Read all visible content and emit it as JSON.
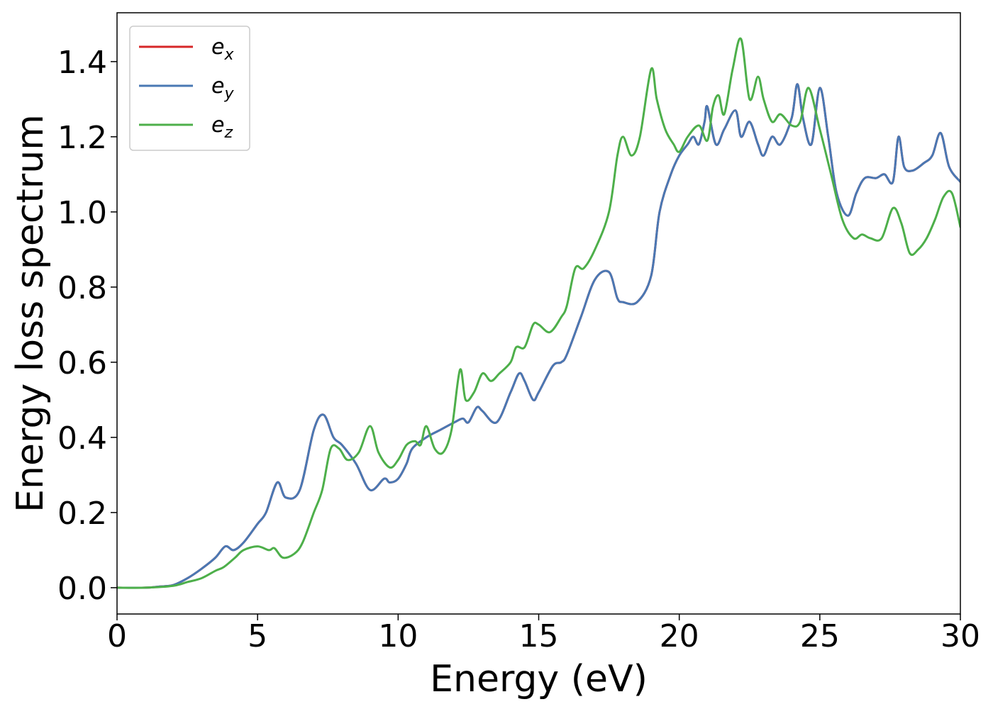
{
  "chart_data": {
    "type": "line",
    "xlabel": "Energy (eV)",
    "ylabel": "Energy loss spectrum",
    "xlim": [
      0,
      30
    ],
    "ylim": [
      -0.07,
      1.53
    ],
    "xticks": [
      0,
      5,
      10,
      15,
      20,
      25,
      30
    ],
    "xtick_labels": [
      "0",
      "5",
      "10",
      "15",
      "20",
      "25",
      "30"
    ],
    "yticks": [
      0.0,
      0.2,
      0.4,
      0.6,
      0.8,
      1.0,
      1.2,
      1.4
    ],
    "ytick_labels": [
      "0.0",
      "0.2",
      "0.4",
      "0.6",
      "0.8",
      "1.0",
      "1.2",
      "1.4"
    ],
    "grid": false,
    "legend_position": "top-left",
    "series": [
      {
        "name": "e_x",
        "label_base": "e",
        "label_sub": "x",
        "color": "#d62728",
        "x": [
          0,
          1,
          1.5,
          2,
          2.5,
          3,
          3.5,
          3.85,
          4.15,
          4.5,
          5,
          5.3,
          5.7,
          6,
          6.5,
          7,
          7.35,
          7.7,
          8,
          8.5,
          9,
          9.5,
          9.7,
          10,
          10.3,
          10.5,
          11,
          11.5,
          12,
          12.3,
          12.5,
          12.8,
          13,
          13.5,
          14,
          14.3,
          14.5,
          14.8,
          15,
          15.5,
          15.8,
          16,
          16.5,
          17,
          17.5,
          17.8,
          18,
          18.5,
          19,
          19.3,
          19.7,
          20,
          20.3,
          20.5,
          20.7,
          20.9,
          21,
          21.3,
          21.6,
          22,
          22.2,
          22.5,
          22.8,
          23,
          23.3,
          23.6,
          24,
          24.2,
          24.4,
          24.7,
          25,
          25.3,
          25.6,
          26,
          26.3,
          26.6,
          27,
          27.3,
          27.6,
          27.8,
          28,
          28.3,
          28.7,
          29,
          29.3,
          29.6,
          30
        ],
        "y": [
          0,
          0,
          0.003,
          0.007,
          0.025,
          0.05,
          0.08,
          0.11,
          0.1,
          0.12,
          0.17,
          0.2,
          0.28,
          0.24,
          0.26,
          0.42,
          0.46,
          0.4,
          0.38,
          0.33,
          0.26,
          0.29,
          0.28,
          0.29,
          0.33,
          0.37,
          0.4,
          0.42,
          0.44,
          0.45,
          0.44,
          0.48,
          0.47,
          0.44,
          0.52,
          0.57,
          0.55,
          0.5,
          0.52,
          0.59,
          0.6,
          0.62,
          0.72,
          0.82,
          0.84,
          0.77,
          0.76,
          0.76,
          0.83,
          1.0,
          1.1,
          1.15,
          1.18,
          1.2,
          1.18,
          1.24,
          1.28,
          1.18,
          1.22,
          1.27,
          1.2,
          1.24,
          1.18,
          1.15,
          1.2,
          1.18,
          1.25,
          1.34,
          1.25,
          1.18,
          1.33,
          1.2,
          1.05,
          0.99,
          1.05,
          1.09,
          1.09,
          1.1,
          1.08,
          1.2,
          1.12,
          1.11,
          1.13,
          1.15,
          1.21,
          1.12,
          1.08
        ]
      },
      {
        "name": "e_y",
        "label_base": "e",
        "label_sub": "y",
        "color": "#4a78b3",
        "x": [
          0,
          1,
          1.5,
          2,
          2.5,
          3,
          3.5,
          3.85,
          4.15,
          4.5,
          5,
          5.3,
          5.7,
          6,
          6.5,
          7,
          7.35,
          7.7,
          8,
          8.5,
          9,
          9.5,
          9.7,
          10,
          10.3,
          10.5,
          11,
          11.5,
          12,
          12.3,
          12.5,
          12.8,
          13,
          13.5,
          14,
          14.3,
          14.5,
          14.8,
          15,
          15.5,
          15.8,
          16,
          16.5,
          17,
          17.5,
          17.8,
          18,
          18.5,
          19,
          19.3,
          19.7,
          20,
          20.3,
          20.5,
          20.7,
          20.9,
          21,
          21.3,
          21.6,
          22,
          22.2,
          22.5,
          22.8,
          23,
          23.3,
          23.6,
          24,
          24.2,
          24.4,
          24.7,
          25,
          25.3,
          25.6,
          26,
          26.3,
          26.6,
          27,
          27.3,
          27.6,
          27.8,
          28,
          28.3,
          28.7,
          29,
          29.3,
          29.6,
          30
        ],
        "y": [
          0,
          0,
          0.003,
          0.007,
          0.025,
          0.05,
          0.08,
          0.11,
          0.1,
          0.12,
          0.17,
          0.2,
          0.28,
          0.24,
          0.26,
          0.42,
          0.46,
          0.4,
          0.38,
          0.33,
          0.26,
          0.29,
          0.28,
          0.29,
          0.33,
          0.37,
          0.4,
          0.42,
          0.44,
          0.45,
          0.44,
          0.48,
          0.47,
          0.44,
          0.52,
          0.57,
          0.55,
          0.5,
          0.52,
          0.59,
          0.6,
          0.62,
          0.72,
          0.82,
          0.84,
          0.77,
          0.76,
          0.76,
          0.83,
          1.0,
          1.1,
          1.15,
          1.18,
          1.2,
          1.18,
          1.24,
          1.28,
          1.18,
          1.22,
          1.27,
          1.2,
          1.24,
          1.18,
          1.15,
          1.2,
          1.18,
          1.25,
          1.34,
          1.25,
          1.18,
          1.33,
          1.2,
          1.05,
          0.99,
          1.05,
          1.09,
          1.09,
          1.1,
          1.08,
          1.2,
          1.12,
          1.11,
          1.13,
          1.15,
          1.21,
          1.12,
          1.08
        ]
      },
      {
        "name": "e_z",
        "label_base": "e",
        "label_sub": "z",
        "color": "#4daf4a",
        "x": [
          0,
          1,
          2,
          2.5,
          3,
          3.5,
          3.8,
          4.2,
          4.5,
          5,
          5.4,
          5.6,
          5.9,
          6.3,
          6.6,
          7,
          7.3,
          7.6,
          7.9,
          8.2,
          8.6,
          9,
          9.3,
          9.7,
          10,
          10.3,
          10.6,
          10.8,
          11,
          11.3,
          11.6,
          11.9,
          12.2,
          12.4,
          12.7,
          13,
          13.3,
          13.6,
          14,
          14.2,
          14.5,
          14.8,
          15,
          15.4,
          15.8,
          16,
          16.3,
          16.6,
          17,
          17.5,
          17.8,
          18,
          18.3,
          18.6,
          19,
          19.2,
          19.5,
          19.8,
          20,
          20.3,
          20.7,
          21,
          21.2,
          21.4,
          21.6,
          21.9,
          22.2,
          22.5,
          22.8,
          23,
          23.3,
          23.6,
          24,
          24.3,
          24.6,
          25,
          25.4,
          25.8,
          26.2,
          26.5,
          26.8,
          27.2,
          27.6,
          27.9,
          28.2,
          28.5,
          28.8,
          29.1,
          29.4,
          29.7,
          30
        ],
        "y": [
          0,
          0,
          0.005,
          0.015,
          0.025,
          0.045,
          0.055,
          0.08,
          0.1,
          0.11,
          0.1,
          0.105,
          0.08,
          0.09,
          0.12,
          0.2,
          0.26,
          0.37,
          0.37,
          0.34,
          0.36,
          0.43,
          0.36,
          0.32,
          0.34,
          0.38,
          0.39,
          0.38,
          0.43,
          0.37,
          0.36,
          0.42,
          0.58,
          0.5,
          0.52,
          0.57,
          0.55,
          0.57,
          0.6,
          0.64,
          0.64,
          0.7,
          0.7,
          0.68,
          0.72,
          0.75,
          0.85,
          0.85,
          0.9,
          1.0,
          1.15,
          1.2,
          1.15,
          1.2,
          1.38,
          1.3,
          1.22,
          1.18,
          1.16,
          1.2,
          1.23,
          1.19,
          1.28,
          1.31,
          1.26,
          1.38,
          1.46,
          1.3,
          1.36,
          1.3,
          1.24,
          1.26,
          1.23,
          1.24,
          1.33,
          1.22,
          1.1,
          0.98,
          0.93,
          0.94,
          0.93,
          0.93,
          1.01,
          0.97,
          0.89,
          0.9,
          0.93,
          0.98,
          1.04,
          1.05,
          0.96
        ]
      }
    ]
  }
}
